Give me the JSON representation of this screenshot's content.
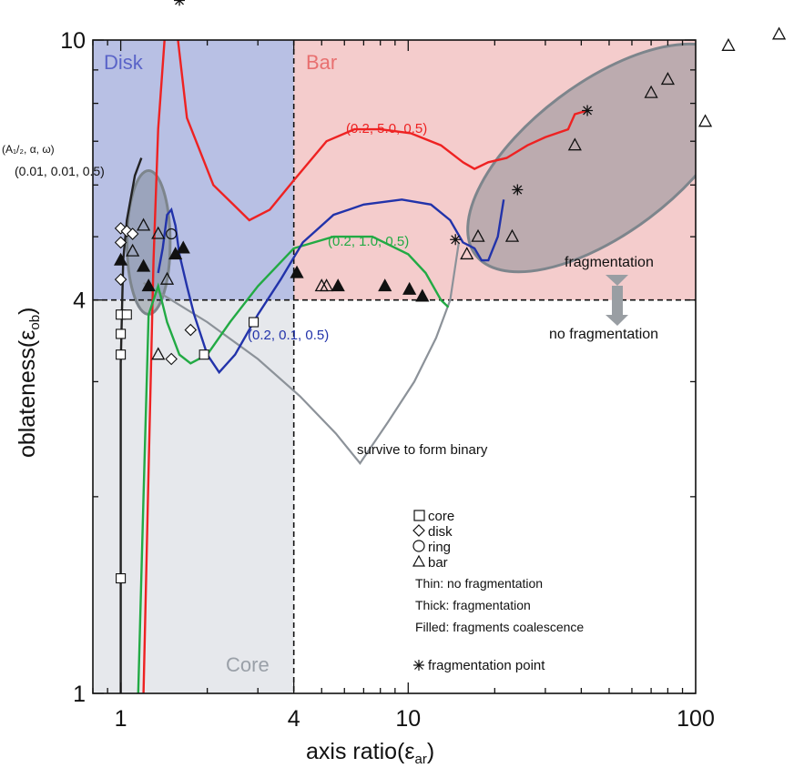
{
  "chart_data": {
    "type": "line",
    "xlabel": "axis ratio(ε",
    "xlabel_sub": "ar",
    "ylabel": "oblateness(ε",
    "ylabel_sub": "ob",
    "x_scale": "log",
    "y_scale": "log",
    "xlim": [
      0.8,
      100
    ],
    "ylim": [
      1,
      10
    ],
    "x_ticks": [
      1,
      4,
      10,
      100
    ],
    "x_tick_labels": [
      "1",
      "4",
      "10",
      "100"
    ],
    "y_ticks": [
      1,
      4,
      10
    ],
    "y_tick_labels": [
      "1",
      "4",
      "10"
    ],
    "regions": [
      {
        "label": "Disk",
        "color": "#b8c0e4",
        "text_color": "#5a64c8",
        "x": [
          0.8,
          4
        ],
        "y": [
          4,
          10
        ]
      },
      {
        "label": "Bar",
        "color": "#f4cccc",
        "text_color": "#e87070",
        "x": [
          4,
          100
        ],
        "y": [
          4,
          10
        ]
      },
      {
        "label": "Core",
        "color": "#e6e8ec",
        "text_color": "#9aa0a8",
        "x": [
          0.8,
          4
        ],
        "y": [
          1,
          4
        ]
      }
    ],
    "threshold_lines": {
      "x": 4,
      "y": 4
    },
    "param_header": "(A₁/₂, α, ω)",
    "fragmentation_label": "fragmentation",
    "no_fragmentation_label": "no fragmentation",
    "binary_annotation": "survive to form binary",
    "series": [
      {
        "name": "(0.2, 5.0, 0.5)",
        "color": "#ee2222",
        "x": [
          1.2,
          1.25,
          1.3,
          1.35,
          1.42,
          1.48,
          1.55,
          1.7,
          2.1,
          2.8,
          3.3,
          4.0,
          5.2,
          6.5,
          8.0,
          10.2,
          13.0,
          15.5,
          17.0,
          19.0,
          22.0,
          26.0,
          30.0,
          36.0,
          38.0,
          42.0
        ],
        "y": [
          1.0,
          2.2,
          4.6,
          7.3,
          10.0,
          12.0,
          10.8,
          7.6,
          6.0,
          5.3,
          5.5,
          6.1,
          7.0,
          7.3,
          7.3,
          7.2,
          6.9,
          6.5,
          6.35,
          6.5,
          6.6,
          6.9,
          7.1,
          7.3,
          7.7,
          7.8
        ]
      },
      {
        "name": "(0.2, 1.0, 0.5)",
        "color": "#22aa44",
        "x": [
          1.15,
          1.2,
          1.25,
          1.35,
          1.45,
          1.6,
          1.75,
          2.0,
          2.4,
          3.0,
          4.0,
          5.5,
          7.5,
          10.0,
          11.5,
          13.0,
          13.8
        ],
        "y": [
          1.0,
          2.0,
          3.8,
          4.2,
          3.7,
          3.3,
          3.2,
          3.3,
          3.7,
          4.2,
          4.8,
          5.0,
          5.0,
          4.7,
          4.4,
          4.0,
          3.9
        ]
      },
      {
        "name": "(0.2, 0.1, 0.5)",
        "color": "#2233aa",
        "x": [
          1.35,
          1.4,
          1.45,
          1.5,
          1.55,
          1.6,
          1.7,
          1.8,
          2.0,
          2.2,
          2.5,
          3.0,
          3.6,
          4.3,
          5.5,
          7.0,
          9.5,
          12.0,
          14.0,
          15.5,
          17.0,
          18.0,
          19.0,
          20.5,
          21.5
        ],
        "y": [
          4.4,
          4.8,
          5.4,
          5.5,
          5.2,
          4.7,
          4.2,
          3.8,
          3.3,
          3.1,
          3.3,
          3.8,
          4.3,
          4.9,
          5.4,
          5.6,
          5.7,
          5.6,
          5.3,
          4.9,
          4.8,
          4.6,
          4.6,
          5.0,
          5.7
        ]
      },
      {
        "name": "(0.01, 0.01, 0.5)",
        "color": "#222222",
        "x": [
          1.0,
          1.0,
          1.02,
          1.05,
          1.12,
          1.18
        ],
        "y": [
          1.0,
          3.2,
          4.6,
          5.3,
          6.2,
          6.6
        ]
      }
    ],
    "binary_path": {
      "color": "#8c9299",
      "x": [
        1.2,
        1.5,
        2.0,
        3.0,
        4.2,
        5.6,
        6.8,
        8.5,
        10.5,
        12.5,
        14.0,
        15.0
      ],
      "y": [
        4.25,
        4.0,
        3.7,
        3.25,
        2.85,
        2.5,
        2.25,
        2.6,
        3.0,
        3.5,
        4.0,
        4.9
      ]
    },
    "ellipses": [
      {
        "name": "disk-cluster",
        "cx": 1.25,
        "cy": 4.9,
        "rx_dec": 0.075,
        "ry_dec": 0.11
      },
      {
        "name": "bar-cluster",
        "cx": 48,
        "cy": 6.6,
        "rx_dec": 0.56,
        "ry_dec": 0.115,
        "angle_deg": -37
      }
    ],
    "markers": {
      "core": [
        {
          "x": 1.0,
          "y": 3.8
        },
        {
          "x": 1.05,
          "y": 3.8
        },
        {
          "x": 1.0,
          "y": 3.55
        },
        {
          "x": 1.0,
          "y": 3.3
        },
        {
          "x": 1.0,
          "y": 1.5
        },
        {
          "x": 2.9,
          "y": 3.7
        },
        {
          "x": 1.95,
          "y": 3.3
        }
      ],
      "disk": [
        {
          "x": 1.0,
          "y": 5.15
        },
        {
          "x": 1.05,
          "y": 5.1
        },
        {
          "x": 1.1,
          "y": 5.05
        },
        {
          "x": 1.0,
          "y": 4.9
        },
        {
          "x": 1.0,
          "y": 4.3
        },
        {
          "x": 1.5,
          "y": 3.25
        },
        {
          "x": 1.75,
          "y": 3.6
        }
      ],
      "ring": [
        {
          "x": 1.5,
          "y": 5.05
        }
      ],
      "bar": [
        {
          "x": 1.2,
          "y": 5.2
        },
        {
          "x": 1.35,
          "y": 5.05
        },
        {
          "x": 1.1,
          "y": 4.75
        },
        {
          "x": 1.45,
          "y": 4.3
        },
        {
          "x": 1.35,
          "y": 3.3
        },
        {
          "x": 5.0,
          "y": 4.2
        },
        {
          "x": 5.2,
          "y": 4.2
        },
        {
          "x": 16.0,
          "y": 4.7
        },
        {
          "x": 17.5,
          "y": 5.0
        },
        {
          "x": 23.0,
          "y": 5.0
        },
        {
          "x": 38.0,
          "y": 6.9
        },
        {
          "x": 70.0,
          "y": 8.3
        },
        {
          "x": 80.0,
          "y": 8.7
        },
        {
          "x": 108.0,
          "y": 7.5
        },
        {
          "x": 130.0,
          "y": 9.8
        },
        {
          "x": 195.0,
          "y": 10.2
        }
      ],
      "filled_bar": [
        {
          "x": 1.0,
          "y": 4.6
        },
        {
          "x": 1.2,
          "y": 4.5
        },
        {
          "x": 1.25,
          "y": 4.2
        },
        {
          "x": 1.55,
          "y": 4.7
        },
        {
          "x": 1.65,
          "y": 4.8
        },
        {
          "x": 4.1,
          "y": 4.4
        },
        {
          "x": 5.7,
          "y": 4.2
        },
        {
          "x": 8.3,
          "y": 4.2
        },
        {
          "x": 10.1,
          "y": 4.15
        },
        {
          "x": 11.2,
          "y": 4.05
        }
      ],
      "frag_point": [
        {
          "x": 1.6,
          "y": 11.5
        },
        {
          "x": 14.6,
          "y": 4.95
        },
        {
          "x": 42.0,
          "y": 7.8
        },
        {
          "x": 24.0,
          "y": 5.9
        }
      ]
    },
    "legend": [
      {
        "symbol": "□",
        "label": "core"
      },
      {
        "symbol": "◇",
        "label": "disk"
      },
      {
        "symbol": "○",
        "label": "ring"
      },
      {
        "symbol": "△",
        "label": "bar"
      }
    ],
    "legend_notes": [
      "Thin: no fragmentation",
      "Thick: fragmentation",
      "Filled: fragments coalescence"
    ],
    "frag_point_legend": "fragmentation point"
  }
}
